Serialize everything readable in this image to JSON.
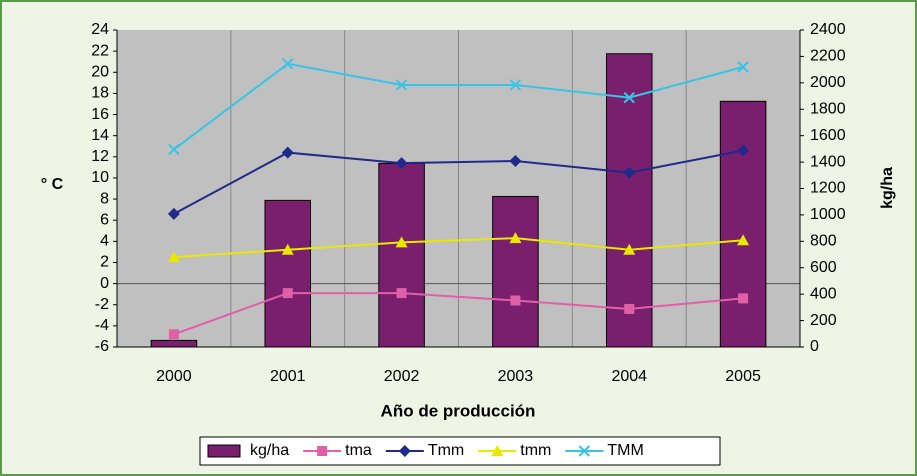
{
  "chart_data": {
    "type": "bar",
    "x_label": "Año de producción",
    "y_label": "° C",
    "y2_label": "kg/ha",
    "categories": [
      "2000",
      "2001",
      "2002",
      "2003",
      "2004",
      "2005"
    ],
    "ylim": [
      -6,
      24
    ],
    "yticks": [
      -6,
      -4,
      -2,
      0,
      2,
      4,
      6,
      8,
      10,
      12,
      14,
      16,
      18,
      20,
      22,
      24
    ],
    "y2lim": [
      0,
      2400
    ],
    "y2ticks": [
      0,
      200,
      400,
      600,
      800,
      1000,
      1200,
      1400,
      1600,
      1800,
      2000,
      2200,
      2400
    ],
    "grid": true,
    "legend": "bottom",
    "series": [
      {
        "name": "kg/ha",
        "type": "bar",
        "axis": "y2",
        "color": "#7a1f6e",
        "values": [
          50,
          1110,
          1390,
          1140,
          2220,
          1860
        ]
      },
      {
        "name": "tma",
        "type": "line",
        "marker": "square",
        "color": "#e060a8",
        "values": [
          -4.8,
          -0.9,
          -0.9,
          -1.6,
          -2.4,
          -1.4
        ]
      },
      {
        "name": "Tmm",
        "type": "line",
        "marker": "diamond",
        "color": "#1f2a8a",
        "values": [
          6.6,
          12.4,
          11.4,
          11.6,
          10.5,
          12.6
        ]
      },
      {
        "name": "tmm",
        "type": "line",
        "marker": "triangle",
        "color": "#e8e800",
        "values": [
          2.5,
          3.2,
          3.9,
          4.3,
          3.2,
          4.1
        ]
      },
      {
        "name": "TMM",
        "type": "line",
        "marker": "x",
        "color": "#38c4e6",
        "values": [
          12.7,
          20.8,
          18.8,
          18.8,
          17.6,
          20.5
        ]
      }
    ]
  }
}
